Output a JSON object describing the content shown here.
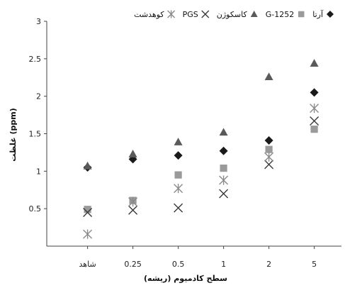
{
  "chart_data": {
    "type": "scatter",
    "title": "",
    "xlabel": "سطح کادمیوم (ریشه)",
    "ylabel": "غلظت (ppm)",
    "categories": [
      "شاهد",
      "0.25",
      "0.5",
      "1",
      "2",
      "5"
    ],
    "ylim": [
      0,
      3
    ],
    "yticks": [
      "0.5",
      "1",
      "1.5",
      "2",
      "2.5",
      "3"
    ],
    "legend_position": "top",
    "grid": false,
    "series": [
      {
        "name": "آرتا",
        "marker": "diamond",
        "color": "#1a1a1a",
        "values": [
          1.05,
          1.16,
          1.21,
          1.27,
          1.41,
          2.05
        ]
      },
      {
        "name": "G-1252",
        "marker": "square",
        "color": "#9a9a9a",
        "values": [
          0.49,
          0.61,
          0.95,
          1.04,
          1.29,
          1.56
        ]
      },
      {
        "name": "کاسکوژن",
        "marker": "triangle",
        "color": "#5a5a5a",
        "values": [
          1.07,
          1.23,
          1.39,
          1.52,
          2.26,
          2.44
        ]
      },
      {
        "name": "PGS",
        "marker": "x",
        "color": "#3a3a3a",
        "values": [
          0.45,
          0.48,
          0.51,
          0.7,
          1.09,
          1.67
        ]
      },
      {
        "name": "کوهدشت",
        "marker": "asterisk",
        "color": "#8a8a8a",
        "values": [
          0.16,
          0.59,
          0.77,
          0.88,
          1.19,
          1.84
        ]
      }
    ]
  }
}
